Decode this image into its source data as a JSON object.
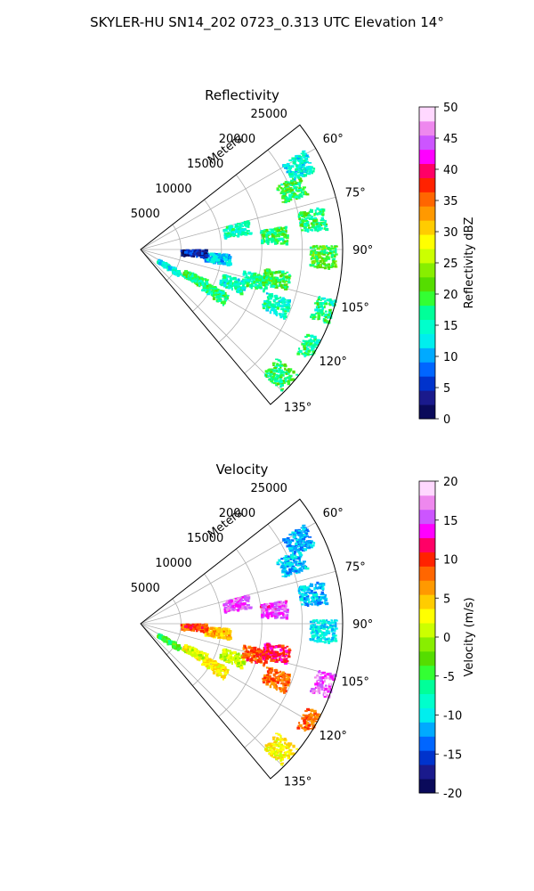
{
  "title": "SKYLER-HU  SN14_202  0723_0.313 UTC Elevation 14°",
  "chart_data": [
    {
      "type": "polar_sector",
      "title": "Reflectivity",
      "radial_label": "Meters",
      "radial_ticks": [
        5000,
        10000,
        15000,
        20000,
        25000
      ],
      "radial_max": 25000,
      "angle_ticks": [
        "60°",
        "75°",
        "90°",
        "105°",
        "120°",
        "135°"
      ],
      "angle_range_deg": [
        52,
        140
      ],
      "colorbar": {
        "label": "Reflectivity dBZ",
        "min": 0,
        "max": 50,
        "ticks": [
          0,
          5,
          10,
          15,
          20,
          25,
          30,
          35,
          40,
          45,
          50
        ],
        "colors": [
          "#0a0a5a",
          "#1a1a8c",
          "#0033cc",
          "#0066ff",
          "#00aaff",
          "#00eeee",
          "#00ffcc",
          "#00ff99",
          "#33ff33",
          "#55dd00",
          "#88ee00",
          "#ccff00",
          "#ffff00",
          "#ffcc00",
          "#ff9900",
          "#ff6600",
          "#ff2200",
          "#ff0066",
          "#ff00ff",
          "#cc55ff",
          "#ee88ee",
          "#ffd8ff"
        ]
      },
      "echo_regions": [
        {
          "az": 122,
          "r": 4000,
          "dbz": 14
        },
        {
          "az": 118,
          "r": 7500,
          "dbz": 18
        },
        {
          "az": 120,
          "r": 10500,
          "dbz": 17
        },
        {
          "az": 110,
          "r": 12000,
          "dbz": 15
        },
        {
          "az": 105,
          "r": 14500,
          "dbz": 17
        },
        {
          "az": 102,
          "r": 17000,
          "dbz": 19
        },
        {
          "az": 112,
          "r": 18000,
          "dbz": 15
        },
        {
          "az": 96,
          "r": 9500,
          "dbz": 12
        },
        {
          "az": 84,
          "r": 16500,
          "dbz": 18
        },
        {
          "az": 78,
          "r": 12000,
          "dbz": 15
        },
        {
          "az": 68,
          "r": 20000,
          "dbz": 19
        },
        {
          "az": 80,
          "r": 21500,
          "dbz": 18
        },
        {
          "az": 92,
          "r": 22500,
          "dbz": 20
        },
        {
          "az": 62,
          "r": 22000,
          "dbz": 14
        },
        {
          "az": 108,
          "r": 24000,
          "dbz": 17
        },
        {
          "az": 120,
          "r": 24500,
          "dbz": 17
        },
        {
          "az": 132,
          "r": 23000,
          "dbz": 18
        },
        {
          "az": 93,
          "r": 6500,
          "dbz": 4
        }
      ]
    },
    {
      "type": "polar_sector",
      "title": "Velocity",
      "radial_label": "Meters",
      "radial_ticks": [
        5000,
        10000,
        15000,
        20000,
        25000
      ],
      "radial_max": 25000,
      "angle_ticks": [
        "60°",
        "75°",
        "90°",
        "105°",
        "120°",
        "135°"
      ],
      "angle_range_deg": [
        52,
        140
      ],
      "colorbar": {
        "label": "Velocity (m/s)",
        "min": -20,
        "max": 20,
        "ticks": [
          -20,
          -15,
          -10,
          -5,
          0,
          5,
          10,
          15,
          20
        ],
        "colors": [
          "#0a0a5a",
          "#1a1a8c",
          "#0033cc",
          "#0066ff",
          "#00aaff",
          "#00eeee",
          "#00ffcc",
          "#00ff99",
          "#33ff33",
          "#55dd00",
          "#88ee00",
          "#ccff00",
          "#ffff00",
          "#ffcc00",
          "#ff9900",
          "#ff6600",
          "#ff2200",
          "#ff0066",
          "#ff00ff",
          "#cc55ff",
          "#ee88ee",
          "#ffd8ff"
        ]
      },
      "echo_regions": [
        {
          "az": 122,
          "r": 4000,
          "v": -4
        },
        {
          "az": 118,
          "r": 7500,
          "v": 2
        },
        {
          "az": 120,
          "r": 10500,
          "v": 3
        },
        {
          "az": 110,
          "r": 12000,
          "v": 1
        },
        {
          "az": 105,
          "r": 14500,
          "v": 9
        },
        {
          "az": 102,
          "r": 17000,
          "v": 11
        },
        {
          "az": 112,
          "r": 18000,
          "v": 8
        },
        {
          "az": 96,
          "r": 9500,
          "v": 5
        },
        {
          "az": 84,
          "r": 16500,
          "v": 15
        },
        {
          "az": 78,
          "r": 12000,
          "v": 15
        },
        {
          "az": 68,
          "r": 20000,
          "v": -11
        },
        {
          "az": 80,
          "r": 21500,
          "v": -11
        },
        {
          "az": 92,
          "r": 22500,
          "v": -10
        },
        {
          "az": 62,
          "r": 22000,
          "v": -12
        },
        {
          "az": 108,
          "r": 24000,
          "v": 16
        },
        {
          "az": 120,
          "r": 24500,
          "v": 8
        },
        {
          "az": 132,
          "r": 23000,
          "v": 3
        },
        {
          "az": 93,
          "r": 6500,
          "v": 9
        }
      ]
    }
  ]
}
